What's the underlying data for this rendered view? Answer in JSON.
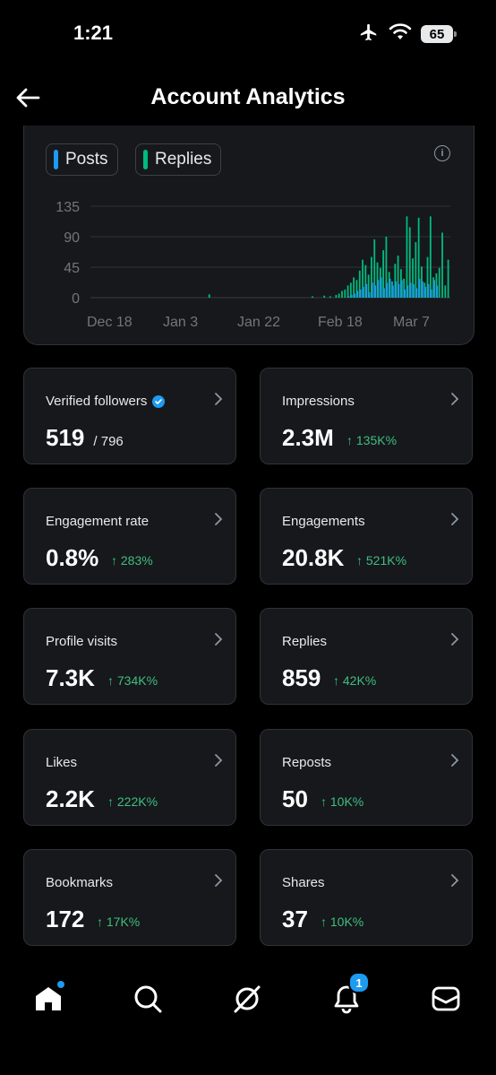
{
  "status": {
    "time": "1:21",
    "battery": "65"
  },
  "header": {
    "title": "Account Analytics"
  },
  "chart_data": {
    "type": "bar",
    "legend": [
      "Posts",
      "Replies"
    ],
    "series_colors": {
      "Posts": "#1d9bf0",
      "Replies": "#00ba7c"
    },
    "yticks": [
      "135",
      "90",
      "45",
      "0"
    ],
    "ylim": [
      0,
      135
    ],
    "xticks": [
      "Dec 18",
      "Jan 3",
      "Jan 22",
      "Feb 18",
      "Mar 7"
    ],
    "grid": true,
    "posts_values": [
      0,
      0,
      0,
      0,
      0,
      0,
      0,
      0,
      0,
      0,
      0,
      0,
      0,
      0,
      0,
      0,
      0,
      0,
      0,
      0,
      0,
      0,
      0,
      0,
      0,
      0,
      0,
      0,
      0,
      0,
      0,
      0,
      0,
      0,
      0,
      0,
      0,
      0,
      0,
      0,
      0,
      0,
      0,
      0,
      0,
      0,
      0,
      0,
      0,
      0,
      0,
      0,
      0,
      0,
      0,
      0,
      0,
      0,
      0,
      0,
      0,
      0,
      0,
      0,
      0,
      0,
      0,
      0,
      0,
      0,
      0,
      0,
      0,
      0,
      0,
      0,
      0,
      0,
      0,
      0,
      0,
      0,
      0,
      0,
      0,
      0,
      0,
      2,
      4,
      6,
      10,
      12,
      16,
      20,
      8,
      22,
      18,
      26,
      30,
      14,
      22,
      28,
      18,
      24,
      20,
      26,
      12,
      18,
      22,
      20,
      14,
      28,
      24,
      16,
      20,
      12,
      26,
      18
    ],
    "replies_values": [
      0,
      0,
      0,
      0,
      0,
      0,
      0,
      0,
      0,
      0,
      0,
      0,
      0,
      0,
      0,
      0,
      0,
      0,
      0,
      0,
      0,
      0,
      0,
      0,
      0,
      0,
      0,
      0,
      0,
      0,
      0,
      0,
      0,
      0,
      0,
      0,
      0,
      0,
      0,
      0,
      5,
      0,
      0,
      0,
      0,
      0,
      0,
      0,
      0,
      0,
      0,
      0,
      0,
      0,
      0,
      0,
      0,
      0,
      0,
      0,
      0,
      0,
      0,
      0,
      0,
      0,
      0,
      0,
      0,
      0,
      0,
      0,
      0,
      0,
      0,
      2,
      0,
      0,
      0,
      3,
      0,
      2,
      0,
      4,
      6,
      10,
      12,
      18,
      22,
      30,
      26,
      40,
      56,
      48,
      34,
      60,
      86,
      52,
      44,
      70,
      90,
      38,
      24,
      50,
      62,
      42,
      28,
      120,
      104,
      58,
      82,
      118,
      46,
      22,
      60,
      120,
      30,
      36,
      44,
      96,
      18,
      56
    ]
  },
  "cards": [
    {
      "label": "Verified followers",
      "value": "519",
      "sub": "/ 796",
      "delta": "",
      "verified": true
    },
    {
      "label": "Impressions",
      "value": "2.3M",
      "sub": "",
      "delta": "↑ 135K%"
    },
    {
      "label": "Engagement rate",
      "value": "0.8%",
      "sub": "",
      "delta": "↑ 283%"
    },
    {
      "label": "Engagements",
      "value": "20.8K",
      "sub": "",
      "delta": "↑ 521K%"
    },
    {
      "label": "Profile visits",
      "value": "7.3K",
      "sub": "",
      "delta": "↑ 734K%"
    },
    {
      "label": "Replies",
      "value": "859",
      "sub": "",
      "delta": "↑ 42K%"
    },
    {
      "label": "Likes",
      "value": "2.2K",
      "sub": "",
      "delta": "↑ 222K%"
    },
    {
      "label": "Reposts",
      "value": "50",
      "sub": "",
      "delta": "↑ 10K%"
    },
    {
      "label": "Bookmarks",
      "value": "172",
      "sub": "",
      "delta": "↑ 17K%"
    },
    {
      "label": "Shares",
      "value": "37",
      "sub": "",
      "delta": "↑ 10K%"
    }
  ],
  "tabbar": {
    "items": [
      "home-icon",
      "search-icon",
      "grok-icon",
      "notifications-icon",
      "messages-icon"
    ],
    "notification_badge": "1"
  }
}
